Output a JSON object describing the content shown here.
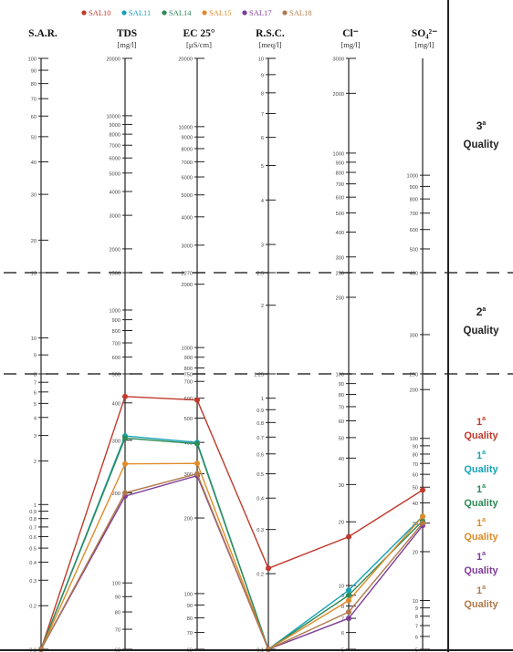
{
  "colors": {
    "SAL10": "#c0392b",
    "SAL11": "#17a2b8",
    "SAL14": "#2e8b57",
    "SAL15": "#e08b2a",
    "SAL17": "#7d3c98",
    "SAL18": "#b07a4a",
    "axis": "#222222",
    "threshold": "#333333"
  },
  "chart_data": {
    "type": "line",
    "title": "",
    "legend": {
      "placement": "top",
      "entries": [
        "SAL10",
        "SAL11",
        "SAL14",
        "SAL15",
        "SAL17",
        "SAL18"
      ]
    },
    "axes": [
      {
        "key": "sar",
        "label": "S.A.R.",
        "unit": "",
        "scale": "log",
        "range": [
          0.1,
          100
        ],
        "ticks": [
          "100",
          "90",
          "80",
          "70",
          "60",
          "50",
          "40",
          "30",
          "20",
          "15",
          "10",
          "9",
          "8",
          "7",
          "6",
          "5",
          "4",
          "3",
          "2",
          "1",
          "0.9",
          "0.8",
          "0.7",
          "0.6",
          "0.5",
          "0.4",
          "0.3",
          "0.2",
          "0.1"
        ],
        "thresholds": [
          "15",
          "8"
        ]
      },
      {
        "key": "tds",
        "label": "TDS",
        "unit": "[mg/l]",
        "scale": "log",
        "range": [
          60,
          20000
        ],
        "ticks": [
          "20000",
          "10000",
          "9000",
          "8000",
          "7000",
          "6000",
          "5000",
          "4000",
          "3000",
          "2000",
          "1500",
          "1000",
          "900",
          "800",
          "700",
          "600",
          "500",
          "400",
          "300",
          "200",
          "100",
          "90",
          "80",
          "70",
          "60"
        ],
        "thresholds": [
          "1500",
          "500"
        ]
      },
      {
        "key": "ec",
        "label": "EC 25°",
        "unit": "[µS/cm]",
        "scale": "log",
        "range": [
          60,
          20000
        ],
        "ticks": [
          "20000",
          "10000",
          "9000",
          "8000",
          "7000",
          "6000",
          "5000",
          "4000",
          "3000",
          "2270",
          "2000",
          "1000",
          "900",
          "800",
          "750",
          "700",
          "600",
          "500",
          "400",
          "300",
          "200",
          "100",
          "90",
          "80",
          "70",
          "60"
        ],
        "thresholds": [
          "2270",
          "750"
        ]
      },
      {
        "key": "rsc",
        "label": "R.S.C.",
        "unit": "[meq/l]",
        "scale": "log",
        "range": [
          0.1,
          10
        ],
        "ticks": [
          "10",
          "9",
          "8",
          "7",
          "6",
          "5",
          "4",
          "3",
          "2.5",
          "2",
          "1.25",
          "1",
          "0.9",
          "0.8",
          "0.7",
          "0.6",
          "0.5",
          "0.4",
          "0.3",
          "0.2",
          "0.1"
        ],
        "thresholds": [
          "2.5",
          "1.25"
        ]
      },
      {
        "key": "cl",
        "label": "Cl⁻",
        "unit": "[mg/l]",
        "scale": "log",
        "range": [
          5,
          3000
        ],
        "ticks": [
          "3000",
          "2000",
          "1000",
          "900",
          "800",
          "700",
          "600",
          "500",
          "400",
          "300",
          "250",
          "200",
          "100",
          "90",
          "80",
          "70",
          "60",
          "50",
          "40",
          "30",
          "20",
          "10",
          "9",
          "8",
          "7",
          "6",
          "5"
        ],
        "thresholds": [
          "250",
          "100"
        ]
      },
      {
        "key": "so4",
        "label": "SO₄²⁻",
        "unit": "[mg/l]",
        "scale": "log",
        "range": [
          5,
          3000
        ],
        "ticks": [
          "1000",
          "900",
          "800",
          "700",
          "600",
          "500",
          "400",
          "300",
          "250",
          "200",
          "100",
          "90",
          "80",
          "70",
          "60",
          "50",
          "40",
          "30",
          "20",
          "10",
          "9",
          "8",
          "7",
          "6",
          "5"
        ],
        "thresholds": [
          "400",
          "250"
        ]
      }
    ],
    "series": [
      {
        "name": "SAL10",
        "values": [
          0.1,
          420,
          590,
          0.21,
          17,
          48
        ]
      },
      {
        "name": "SAL11",
        "values": [
          0.1,
          310,
          400,
          0.1,
          9.5,
          33
        ]
      },
      {
        "name": "SAL14",
        "values": [
          0.1,
          305,
          395,
          0.1,
          9,
          31
        ]
      },
      {
        "name": "SAL15",
        "values": [
          0.1,
          250,
          330,
          0.1,
          8.5,
          33
        ]
      },
      {
        "name": "SAL17",
        "values": [
          0.1,
          195,
          295,
          0.1,
          7,
          29
        ]
      },
      {
        "name": "SAL18",
        "values": [
          0.1,
          200,
          300,
          0.1,
          7.5,
          30
        ]
      }
    ],
    "classes": [
      {
        "label_num": "3",
        "label_sup": "a",
        "label_word": "Quality"
      },
      {
        "label_num": "2",
        "label_sup": "a",
        "label_word": "Quality"
      },
      {
        "label_num": "1",
        "label_sup": "a",
        "label_word": "Quality"
      }
    ],
    "sample_quality": [
      {
        "series": "SAL10",
        "num": "1",
        "sup": "a",
        "word": "Quality"
      },
      {
        "series": "SAL11",
        "num": "1",
        "sup": "a",
        "word": "Quality"
      },
      {
        "series": "SAL14",
        "num": "1",
        "sup": "a",
        "word": "Quality"
      },
      {
        "series": "SAL15",
        "num": "1",
        "sup": "a",
        "word": "Quality"
      },
      {
        "series": "SAL17",
        "num": "1",
        "sup": "a",
        "word": "Quality"
      },
      {
        "series": "SAL18",
        "num": "1",
        "sup": "a",
        "word": "Quality"
      }
    ]
  }
}
